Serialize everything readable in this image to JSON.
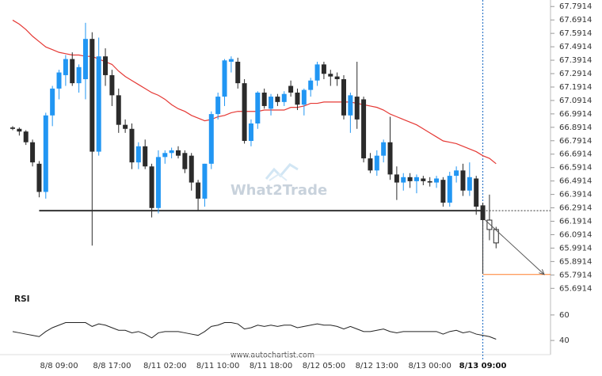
{
  "chart_data": [
    {
      "type": "candlestick",
      "categories": [
        null,
        null,
        null,
        null,
        null,
        null,
        null,
        "8/8 09:00",
        null,
        null,
        null,
        null,
        null,
        null,
        null,
        "8/8 17:00",
        null,
        null,
        null,
        null,
        null,
        null,
        null,
        "8/11 02:00",
        null,
        null,
        null,
        null,
        null,
        null,
        null,
        "8/11 10:00",
        null,
        null,
        null,
        null,
        null,
        null,
        null,
        "8/11 18:00",
        null,
        null,
        null,
        null,
        null,
        null,
        null,
        "8/12 05:00",
        null,
        null,
        null,
        null,
        null,
        null,
        null,
        "8/12 13:00",
        null,
        null,
        null,
        null,
        null,
        null,
        null,
        "8/13 00:00",
        null,
        null,
        null,
        null,
        null,
        null,
        null,
        "8/13 09:00",
        null,
        null
      ],
      "open": [
        66.89,
        66.88,
        66.86,
        66.78,
        66.62,
        66.41,
        66.98,
        67.18,
        67.28,
        67.4,
        67.22,
        67.25,
        67.55,
        66.71,
        67.42,
        67.28,
        67.13,
        66.91,
        66.88,
        66.63,
        66.75,
        66.6,
        66.29,
        66.67,
        66.7,
        66.72,
        66.7,
        66.68,
        66.48,
        66.36,
        66.62,
        66.99,
        67.12,
        67.38,
        67.38,
        67.22,
        66.79,
        66.92,
        67.15,
        67.03,
        67.12,
        67.08,
        67.2,
        67.15,
        67.06,
        67.17,
        67.24,
        67.36,
        67.29,
        67.27,
        67.25,
        66.98,
        67.12,
        67.1,
        66.66,
        66.57,
        66.68,
        66.78,
        66.54,
        66.48,
        66.52,
        66.49,
        66.51,
        66.49,
        66.48,
        66.5,
        66.33,
        66.53,
        66.57,
        66.42,
        66.51,
        66.31,
        66.2,
        66.13
      ],
      "high": [
        66.9,
        66.89,
        66.87,
        66.8,
        66.64,
        67.0,
        67.2,
        67.32,
        67.43,
        67.45,
        67.36,
        67.67,
        67.6,
        67.56,
        67.48,
        67.32,
        67.18,
        66.95,
        66.92,
        66.78,
        66.8,
        66.62,
        66.72,
        66.72,
        66.74,
        66.75,
        66.72,
        66.7,
        66.5,
        66.62,
        67.01,
        67.15,
        67.4,
        67.42,
        67.41,
        67.25,
        66.95,
        67.16,
        67.18,
        67.14,
        67.14,
        67.16,
        67.24,
        67.18,
        67.18,
        67.26,
        67.38,
        67.38,
        67.32,
        67.3,
        67.28,
        67.15,
        67.38,
        67.12,
        66.7,
        66.72,
        66.8,
        66.97,
        66.6,
        66.55,
        66.55,
        66.54,
        66.53,
        66.52,
        66.53,
        66.52,
        66.56,
        66.6,
        66.62,
        66.63,
        66.53,
        66.33,
        66.39,
        66.15
      ],
      "low": [
        66.87,
        66.83,
        66.76,
        66.6,
        66.37,
        66.36,
        66.9,
        67.1,
        67.2,
        67.2,
        67.15,
        67.1,
        66.01,
        66.68,
        67.2,
        67.05,
        66.85,
        66.85,
        66.58,
        66.58,
        66.58,
        66.22,
        66.25,
        66.62,
        66.66,
        66.66,
        66.55,
        66.42,
        66.27,
        66.3,
        66.58,
        66.95,
        67.05,
        67.3,
        67.18,
        66.77,
        66.75,
        66.88,
        67.03,
        66.98,
        67.05,
        67.05,
        67.12,
        67.02,
        66.98,
        67.12,
        67.2,
        67.25,
        67.2,
        67.2,
        66.95,
        66.85,
        66.88,
        66.63,
        66.55,
        66.53,
        66.63,
        66.5,
        66.35,
        66.42,
        66.44,
        66.4,
        66.46,
        66.45,
        66.44,
        66.3,
        66.3,
        66.48,
        66.38,
        66.38,
        66.24,
        65.8,
        66.05,
        65.99
      ],
      "close": [
        66.88,
        66.86,
        66.78,
        66.63,
        66.41,
        66.98,
        67.18,
        67.3,
        67.4,
        67.22,
        67.34,
        67.55,
        66.71,
        67.42,
        67.28,
        67.13,
        66.91,
        66.88,
        66.63,
        66.75,
        66.6,
        66.29,
        66.67,
        66.7,
        66.72,
        66.68,
        66.58,
        66.48,
        66.36,
        66.62,
        66.99,
        67.12,
        67.39,
        67.4,
        67.22,
        66.79,
        66.92,
        67.15,
        67.05,
        67.12,
        67.08,
        67.14,
        67.15,
        67.06,
        67.17,
        67.24,
        67.36,
        67.29,
        67.27,
        67.25,
        66.98,
        67.13,
        66.95,
        66.66,
        66.57,
        66.68,
        66.78,
        66.54,
        66.48,
        66.52,
        66.49,
        66.52,
        66.49,
        66.48,
        66.51,
        66.33,
        66.53,
        66.57,
        66.42,
        66.52,
        66.3,
        66.2,
        66.13,
        66.03
      ],
      "bull_color": "#2196f3",
      "bear_color": "#2b2b2b",
      "moving_average": {
        "color": "#e53935",
        "values": [
          67.69,
          67.66,
          67.62,
          67.57,
          67.53,
          67.49,
          67.47,
          67.45,
          67.44,
          67.43,
          67.43,
          67.42,
          67.42,
          67.4,
          67.38,
          67.36,
          67.31,
          67.27,
          67.24,
          67.21,
          67.18,
          67.15,
          67.13,
          67.1,
          67.06,
          67.03,
          67.01,
          66.98,
          66.96,
          66.94,
          66.95,
          66.97,
          66.98,
          67.0,
          67.01,
          67.01,
          67.01,
          67.01,
          67.02,
          67.02,
          67.02,
          67.02,
          67.04,
          67.04,
          67.05,
          67.07,
          67.07,
          67.08,
          67.08,
          67.08,
          67.08,
          67.08,
          67.07,
          67.06,
          67.05,
          67.04,
          67.02,
          66.99,
          66.97,
          66.95,
          66.93,
          66.91,
          66.88,
          66.85,
          66.82,
          66.79,
          66.78,
          66.77,
          66.75,
          66.73,
          66.71,
          66.68,
          66.66,
          66.62
        ]
      },
      "support": {
        "level": 66.27,
        "start": 4,
        "end": 71,
        "color": "#333333"
      },
      "forecast": {
        "level": 65.795,
        "color": "#ff7f2a"
      },
      "ylim": [
        65.64,
        67.84
      ],
      "yticks": [
        67.7914,
        67.6914,
        67.5914,
        67.4914,
        67.3914,
        67.2914,
        67.1914,
        67.0914,
        66.9914,
        66.8914,
        66.7914,
        66.6914,
        66.5914,
        66.4914,
        66.3914,
        66.2914,
        66.1914,
        66.0914,
        65.9914,
        65.8914,
        65.7914,
        65.6914
      ]
    },
    {
      "type": "line",
      "title": "RSI",
      "color": "#222222",
      "values": [
        47,
        46,
        45,
        44,
        43,
        47,
        50,
        52,
        54,
        54,
        54,
        54,
        51,
        53,
        52,
        50,
        48,
        48,
        46,
        47,
        45,
        42,
        46,
        47,
        47,
        47,
        46,
        45,
        44,
        47,
        51,
        52,
        54,
        54,
        53,
        49,
        50,
        52,
        51,
        52,
        51,
        52,
        52,
        50,
        51,
        52,
        53,
        52,
        52,
        51,
        49,
        51,
        49,
        47,
        47,
        48,
        49,
        47,
        46,
        47,
        47,
        47,
        47,
        47,
        47,
        45,
        47,
        48,
        46,
        47,
        45,
        44,
        43,
        41
      ],
      "ylim": [
        32,
        68
      ],
      "yticks": [
        60,
        40
      ]
    }
  ],
  "watermark": "What2Trade",
  "footer": "www.autochartist.com"
}
